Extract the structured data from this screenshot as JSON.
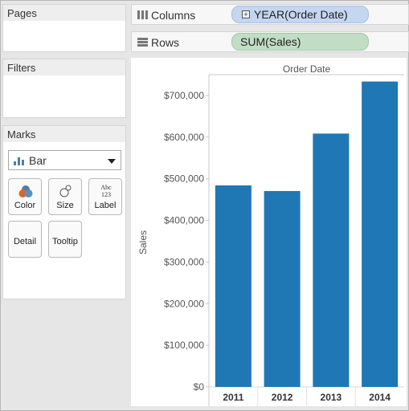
{
  "cards": {
    "pages": {
      "title": "Pages"
    },
    "filters": {
      "title": "Filters"
    },
    "marks": {
      "title": "Marks",
      "mark_type": "Bar",
      "buttons": {
        "color": "Color",
        "size": "Size",
        "label": "Label",
        "detail": "Detail",
        "tooltip": "Tooltip"
      },
      "label_icon_text": [
        "Abc",
        "123"
      ]
    }
  },
  "shelves": {
    "columns": {
      "label": "Columns",
      "pill": "YEAR(Order Date)",
      "pill_icon": "plus-box-icon"
    },
    "rows": {
      "label": "Rows",
      "pill": "SUM(Sales)"
    }
  },
  "colors": {
    "bar": "#1f77b4",
    "pill_dimension": "#c5d6f0",
    "pill_measure": "#c1ddc4"
  },
  "chart_data": {
    "type": "bar",
    "title": "Order Date",
    "xlabel": "",
    "ylabel": "Sales",
    "categories": [
      "2011",
      "2012",
      "2013",
      "2014"
    ],
    "values": [
      484000,
      470500,
      608500,
      733500
    ],
    "ylim": [
      0,
      750000
    ],
    "yticks": [
      0,
      100000,
      200000,
      300000,
      400000,
      500000,
      600000,
      700000
    ],
    "ytick_labels": [
      "$0",
      "$100,000",
      "$200,000",
      "$300,000",
      "$400,000",
      "$500,000",
      "$600,000",
      "$700,000"
    ],
    "grid": false
  }
}
